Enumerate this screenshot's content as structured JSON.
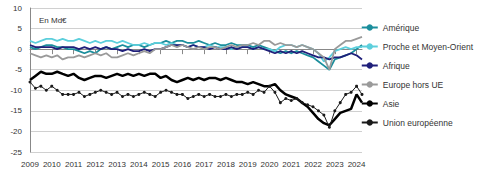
{
  "chart_data": {
    "type": "line",
    "title": "En Md€",
    "categories": [
      "2009",
      null,
      null,
      null,
      "2010",
      null,
      null,
      null,
      "2011",
      null,
      null,
      null,
      "2012",
      null,
      null,
      null,
      "2013",
      null,
      null,
      null,
      "2014",
      null,
      null,
      null,
      "2015",
      null,
      null,
      null,
      "2016",
      null,
      null,
      null,
      "2017",
      null,
      null,
      null,
      "2018",
      null,
      null,
      null,
      "2019",
      null,
      null,
      null,
      "2020",
      null,
      null,
      null,
      "2021",
      null,
      null,
      null,
      "2022",
      null,
      null,
      null,
      "2023",
      null,
      null,
      null,
      "2024",
      null
    ],
    "ylim": [
      -25,
      10
    ],
    "yticks": [
      -25,
      -20,
      -15,
      -10,
      -5,
      0,
      5,
      10
    ],
    "grid": true,
    "legend": "right",
    "series": [
      {
        "name": "Amérique",
        "color": "#1b8e9c",
        "values": [
          0.5,
          0,
          0.5,
          1,
          1,
          0.5,
          0.5,
          0,
          0,
          -0.5,
          -1,
          -0.5,
          -1,
          0,
          0.5,
          0,
          0.5,
          1,
          0.5,
          1,
          1,
          0.5,
          1,
          1.5,
          1.5,
          2,
          1.5,
          2,
          2,
          1.5,
          1.5,
          2,
          1.5,
          1,
          1.5,
          1,
          1,
          1.5,
          1,
          1,
          1,
          0.5,
          1,
          0.5,
          0,
          -0.5,
          -1,
          -0.5,
          -1,
          -0.5,
          -1,
          -1.5,
          -2,
          -3,
          -4,
          -5,
          -2.5,
          -2,
          -1.5,
          -1,
          0,
          1
        ]
      },
      {
        "name": "Proche et Moyen-Orient",
        "color": "#5ccfdc",
        "values": [
          2,
          1.5,
          2,
          2.5,
          2.5,
          2,
          2.5,
          2,
          2,
          2.5,
          2,
          1.5,
          2,
          1.5,
          2,
          2,
          1.5,
          2,
          1.5,
          1,
          1,
          1.5,
          1,
          1.5,
          1.5,
          1,
          1.5,
          1,
          1,
          0.5,
          1,
          0.5,
          0.5,
          1,
          0.5,
          0.5,
          0.5,
          0,
          0.5,
          0.5,
          0.5,
          0,
          0.5,
          0,
          0,
          -0.5,
          0.5,
          1,
          1,
          0.5,
          1,
          0.5,
          0,
          -1,
          -3,
          -2,
          -0.5,
          0,
          0.5,
          0,
          0.5,
          0.5
        ]
      },
      {
        "name": "Afrique",
        "color": "#1f1f7a",
        "values": [
          1,
          0.5,
          0.5,
          0.5,
          0.5,
          0,
          0.5,
          0.5,
          0.5,
          0,
          0.5,
          0,
          0.5,
          0,
          0.5,
          0,
          0,
          -0.5,
          0,
          -0.5,
          -0.5,
          0,
          -0.5,
          0,
          0,
          0.5,
          1,
          1,
          1,
          0.5,
          1,
          0.5,
          0.5,
          0,
          0.5,
          0,
          0,
          0.5,
          0,
          0.5,
          0.5,
          0,
          0.5,
          0,
          -0.5,
          -1,
          -0.5,
          -1,
          -0.5,
          -1,
          -0.5,
          -1,
          -1.5,
          -2,
          -2,
          -2.5,
          -2,
          -2,
          -1.5,
          -1,
          -1.5,
          -2.5
        ]
      },
      {
        "name": "Europe hors UE",
        "color": "#9a9a9a",
        "values": [
          -1,
          -1.5,
          -2,
          -1.5,
          -2,
          -1.5,
          -2.5,
          -2,
          -2,
          -1.5,
          -2,
          -1.5,
          -1,
          -1.5,
          -1,
          -2,
          -2,
          -1.5,
          -1,
          -1.5,
          -1,
          -0.5,
          -1,
          0,
          0,
          0.5,
          1,
          0.5,
          1,
          0.5,
          0,
          0.5,
          0,
          0.5,
          0.5,
          0,
          0.5,
          1,
          0.5,
          1,
          1,
          1.5,
          1,
          2,
          2,
          1,
          1.5,
          1,
          1,
          0.5,
          1,
          0.5,
          0,
          -1,
          -2,
          -5,
          0,
          1,
          2,
          2,
          2.5,
          3
        ]
      },
      {
        "name": "Asie",
        "color": "#000000",
        "values": [
          -7.5,
          -6.5,
          -5.5,
          -6,
          -6,
          -5.5,
          -6,
          -6.5,
          -6,
          -7,
          -7.5,
          -7,
          -6.5,
          -6.5,
          -7,
          -6.5,
          -6,
          -6.5,
          -6,
          -6.5,
          -6,
          -6.5,
          -6,
          -6,
          -7,
          -6.5,
          -7.5,
          -8,
          -7.5,
          -7,
          -7.5,
          -7,
          -7.5,
          -7,
          -7,
          -7.5,
          -7,
          -7.5,
          -8,
          -8,
          -8.5,
          -8,
          -8.5,
          -9,
          -9,
          -8.5,
          -10,
          -11,
          -11.5,
          -12,
          -13,
          -14,
          -15.5,
          -17,
          -18,
          -18.5,
          -17,
          -15.5,
          -15,
          -14.5,
          -11,
          -13
        ]
      },
      {
        "name": "Union européenne",
        "color": "#1a1a1a",
        "marker": "circle",
        "values": [
          -8,
          -9.5,
          -9,
          -10,
          -9,
          -10,
          -11,
          -11,
          -11,
          -10.5,
          -11.5,
          -11,
          -10.5,
          -10,
          -10.5,
          -11,
          -10.5,
          -11.5,
          -11,
          -11.5,
          -11,
          -10.5,
          -11,
          -11.5,
          -10.5,
          -10,
          -10.5,
          -11,
          -11,
          -12,
          -11.5,
          -11,
          -11.5,
          -11,
          -11.5,
          -11.5,
          -11,
          -11.5,
          -11,
          -11,
          -10.5,
          -11,
          -10,
          -10.5,
          -9,
          -10.5,
          -13,
          -12,
          -12.5,
          -12,
          -13,
          -13.5,
          -14,
          -15,
          -16,
          -19,
          -15,
          -13,
          -11,
          -10.5,
          -9,
          -11
        ]
      }
    ]
  }
}
